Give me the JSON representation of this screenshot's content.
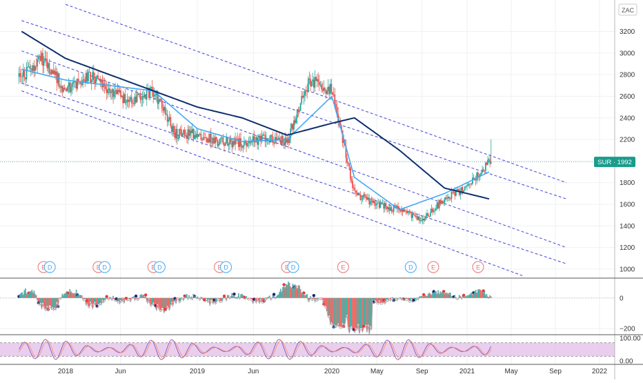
{
  "chart_data": {
    "type": "line",
    "symbol": "SUR",
    "currency_badge": "ZAC",
    "last_label": "SUR · 1992",
    "last_value": 1992,
    "colors": {
      "up": "#26a69a",
      "down": "#ef5350",
      "ma_slow": "#0d2f6e",
      "ma_fast": "#3fa9f5",
      "channel": "#3f3fd9",
      "badge": "#1a9c8c",
      "stoch_band": "#e1bee7"
    },
    "x_axis_labels": [
      "2018",
      "Jun",
      "2019",
      "Jun",
      "2020",
      "May",
      "Sep",
      "2021",
      "May",
      "Sep",
      "2022"
    ],
    "y_axis_ticks": [
      1000,
      1200,
      1400,
      1600,
      1800,
      2000,
      2200,
      2400,
      2600,
      2800,
      3000,
      3200
    ],
    "y_axis_labels": [
      "1000",
      "1200",
      "1400",
      "1600",
      "1800",
      "2000",
      "2200",
      "2400",
      "2600",
      "2800",
      "3000",
      "3200"
    ],
    "ylim": [
      940,
      3360
    ],
    "price_series": [
      {
        "date": "2017-09",
        "value": 2780
      },
      {
        "date": "2017-11",
        "value": 2950
      },
      {
        "date": "2018-01",
        "value": 2650
      },
      {
        "date": "2018-03",
        "value": 2800
      },
      {
        "date": "2018-05",
        "value": 2650
      },
      {
        "date": "2018-07",
        "value": 2550
      },
      {
        "date": "2018-09",
        "value": 2650
      },
      {
        "date": "2018-11",
        "value": 2250
      },
      {
        "date": "2019-01",
        "value": 2250
      },
      {
        "date": "2019-03",
        "value": 2180
      },
      {
        "date": "2019-05",
        "value": 2170
      },
      {
        "date": "2019-07",
        "value": 2200
      },
      {
        "date": "2019-09",
        "value": 2180
      },
      {
        "date": "2019-11",
        "value": 2750
      },
      {
        "date": "2020-01",
        "value": 2650
      },
      {
        "date": "2020-03",
        "value": 1700
      },
      {
        "date": "2020-05",
        "value": 1600
      },
      {
        "date": "2020-07",
        "value": 1550
      },
      {
        "date": "2020-09",
        "value": 1450
      },
      {
        "date": "2020-11",
        "value": 1650
      },
      {
        "date": "2021-01",
        "value": 1750
      },
      {
        "date": "2021-03",
        "value": 1992
      }
    ],
    "ma_slow_series": [
      {
        "date": "2017-09",
        "value": 3200
      },
      {
        "date": "2018-01",
        "value": 2950
      },
      {
        "date": "2018-05",
        "value": 2800
      },
      {
        "date": "2018-09",
        "value": 2650
      },
      {
        "date": "2019-01",
        "value": 2500
      },
      {
        "date": "2019-05",
        "value": 2400
      },
      {
        "date": "2019-09",
        "value": 2240
      },
      {
        "date": "2020-01",
        "value": 2350
      },
      {
        "date": "2020-03",
        "value": 2400
      },
      {
        "date": "2020-07",
        "value": 2100
      },
      {
        "date": "2020-11",
        "value": 1750
      },
      {
        "date": "2021-03",
        "value": 1650
      }
    ],
    "ma_fast_series": [
      {
        "date": "2017-09",
        "value": 2850
      },
      {
        "date": "2018-01",
        "value": 2750
      },
      {
        "date": "2018-05",
        "value": 2700
      },
      {
        "date": "2018-09",
        "value": 2650
      },
      {
        "date": "2019-01",
        "value": 2300
      },
      {
        "date": "2019-05",
        "value": 2180
      },
      {
        "date": "2019-09",
        "value": 2200
      },
      {
        "date": "2020-01",
        "value": 2600
      },
      {
        "date": "2020-03",
        "value": 1850
      },
      {
        "date": "2020-07",
        "value": 1550
      },
      {
        "date": "2020-11",
        "value": 1700
      },
      {
        "date": "2021-03",
        "value": 1900
      }
    ],
    "channel_lines": [
      {
        "from": {
          "date": "2018-01",
          "value": 3450
        },
        "to": {
          "date": "2021-10",
          "value": 1800
        }
      },
      {
        "from": {
          "date": "2017-09",
          "value": 3300
        },
        "to": {
          "date": "2021-10",
          "value": 1650
        }
      },
      {
        "from": {
          "date": "2017-09",
          "value": 3020
        },
        "to": {
          "date": "2021-10",
          "value": 1200
        }
      },
      {
        "from": {
          "date": "2017-09",
          "value": 2720
        },
        "to": {
          "date": "2021-10",
          "value": 1050
        }
      },
      {
        "from": {
          "date": "2017-09",
          "value": 2650
        },
        "to": {
          "date": "2021-06",
          "value": 940
        }
      }
    ],
    "events": [
      {
        "date": "2017-11",
        "labels": [
          "E",
          "D"
        ]
      },
      {
        "date": "2018-04",
        "labels": [
          "E",
          "D"
        ]
      },
      {
        "date": "2018-09",
        "labels": [
          "E",
          "D"
        ]
      },
      {
        "date": "2019-03",
        "labels": [
          "E",
          "D"
        ]
      },
      {
        "date": "2019-09",
        "labels": [
          "E",
          "D"
        ]
      },
      {
        "date": "2020-02",
        "labels": [
          "E"
        ]
      },
      {
        "date": "2020-08",
        "labels": [
          "D"
        ]
      },
      {
        "date": "2020-10",
        "labels": [
          "E"
        ]
      },
      {
        "date": "2021-02",
        "labels": [
          "E"
        ]
      }
    ],
    "oscillator": {
      "y_axis_labels": [
        "0",
        "−200"
      ],
      "y_ticks": [
        0,
        -200
      ],
      "ylim": [
        -240,
        130
      ]
    },
    "stochastic": {
      "y_axis_labels": [
        "100.00",
        "0.00"
      ],
      "y_ticks": [
        100,
        0
      ],
      "band": [
        20,
        80
      ],
      "ylim": [
        -15,
        115
      ]
    },
    "grid": true
  }
}
